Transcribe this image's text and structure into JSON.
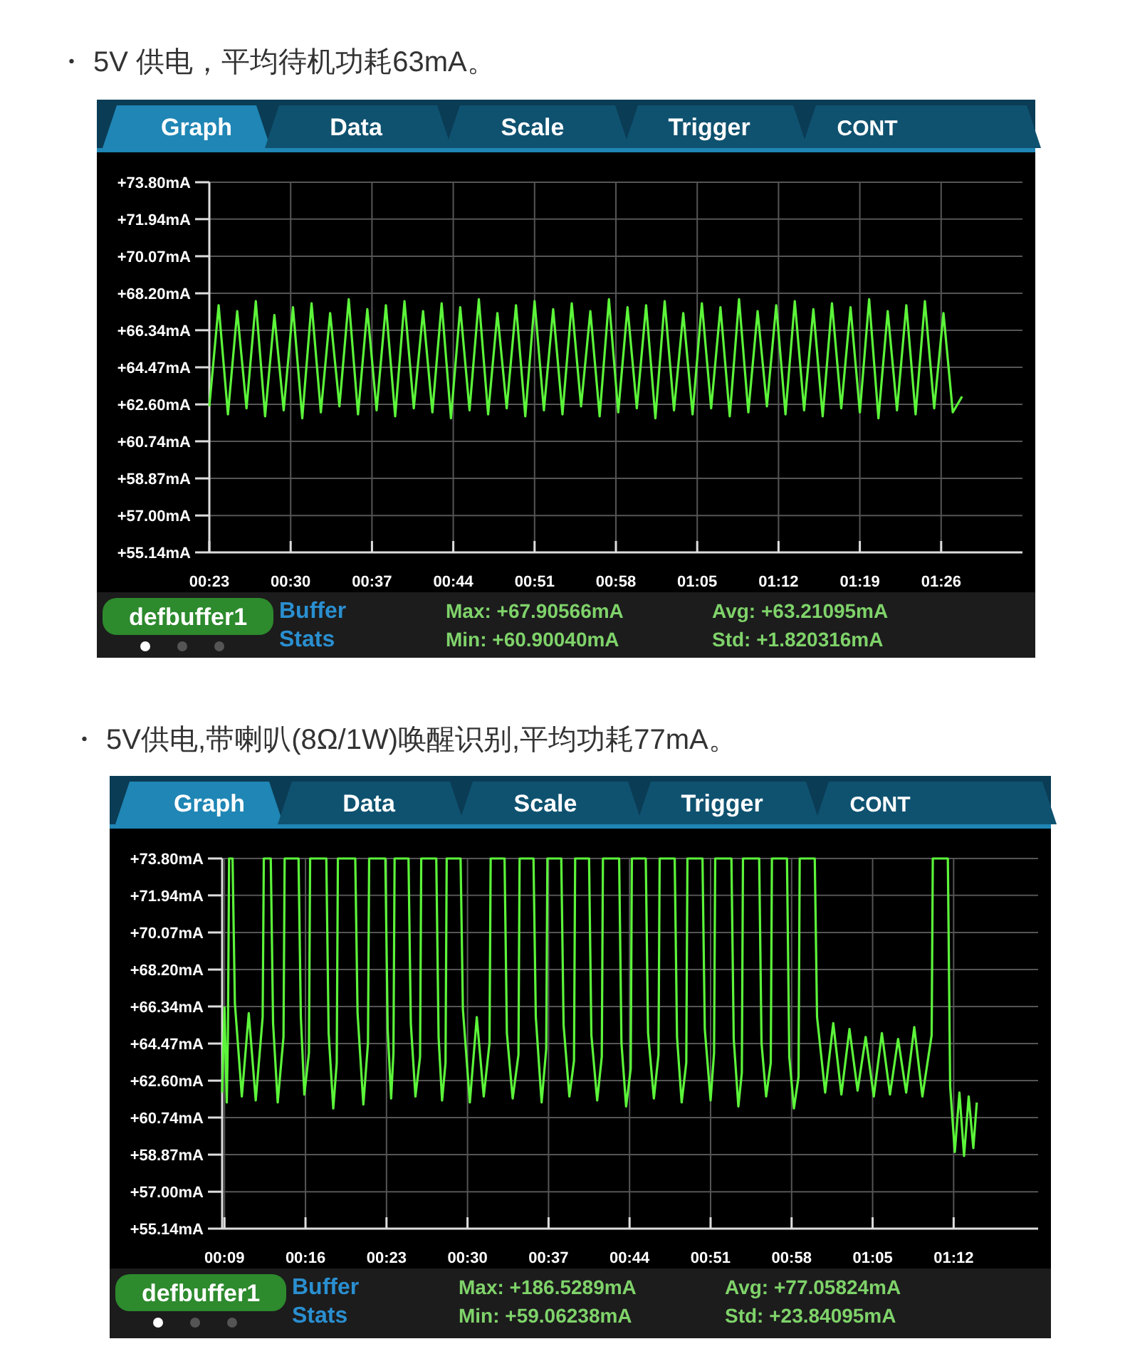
{
  "chart_data": [
    {
      "type": "line",
      "title": "・ 5V 供电，平均待机功耗63mA。",
      "annotations": [
        "Graph",
        "Data",
        "Scale",
        "Trigger",
        "CONT",
        "defbuffer1",
        "Buffer",
        "Stats",
        "Max: +67.90566mA",
        "Min: +60.90040mA",
        "Avg: +63.21095mA",
        "Std: +1.820316mA"
      ],
      "xlim": [
        23,
        93
      ],
      "xticks": [
        {
          "value": 23,
          "label": "00:23"
        },
        {
          "value": 30,
          "label": "00:30"
        },
        {
          "value": 37,
          "label": "00:37"
        },
        {
          "value": 44,
          "label": "00:44"
        },
        {
          "value": 51,
          "label": "00:51"
        },
        {
          "value": 58,
          "label": "00:58"
        },
        {
          "value": 65,
          "label": "01:05"
        },
        {
          "value": 72,
          "label": "01:12"
        },
        {
          "value": 79,
          "label": "01:19"
        },
        {
          "value": 86,
          "label": "01:26"
        }
      ],
      "ylim": [
        55.14,
        73.8
      ],
      "yticks": [
        {
          "value": 55.14,
          "label": "+55.14mA"
        },
        {
          "value": 57.0,
          "label": "+57.00mA"
        },
        {
          "value": 58.87,
          "label": "+58.87mA"
        },
        {
          "value": 60.74,
          "label": "+60.74mA"
        },
        {
          "value": 62.6,
          "label": "+62.60mA"
        },
        {
          "value": 64.47,
          "label": "+64.47mA"
        },
        {
          "value": 66.34,
          "label": "+66.34mA"
        },
        {
          "value": 68.2,
          "label": "+68.20mA"
        },
        {
          "value": 70.07,
          "label": "+70.07mA"
        },
        {
          "value": 71.94,
          "label": "+71.94mA"
        },
        {
          "value": 73.8,
          "label": "+73.80mA"
        }
      ],
      "grid": true,
      "series": [
        {
          "color": "#5cf53a",
          "x": [
            23.0,
            23.8,
            24.6,
            25.4,
            26.2,
            27.0,
            27.8,
            28.6,
            29.4,
            30.2,
            31.0,
            31.8,
            32.6,
            33.4,
            34.2,
            35.0,
            35.8,
            36.6,
            37.4,
            38.2,
            39.0,
            39.8,
            40.6,
            41.4,
            42.2,
            43.0,
            43.8,
            44.6,
            45.4,
            46.2,
            47.0,
            47.8,
            48.6,
            49.4,
            50.2,
            51.0,
            51.8,
            52.6,
            53.4,
            54.2,
            55.0,
            55.8,
            56.6,
            57.4,
            58.2,
            59.0,
            59.8,
            60.6,
            61.4,
            62.2,
            63.0,
            63.8,
            64.6,
            65.4,
            66.2,
            67.0,
            67.8,
            68.6,
            69.4,
            70.2,
            71.0,
            71.8,
            72.6,
            73.4,
            74.2,
            75.0,
            75.8,
            76.6,
            77.4,
            78.2,
            79.0,
            79.8,
            80.6,
            81.4,
            82.2,
            83.0,
            83.8,
            84.6,
            85.4,
            86.2,
            87.0,
            87.8
          ],
          "values": [
            62.5,
            67.6,
            62.1,
            67.3,
            62.4,
            67.8,
            62.0,
            67.1,
            62.3,
            67.5,
            61.9,
            67.7,
            62.2,
            67.2,
            62.5,
            67.9,
            62.1,
            67.4,
            62.3,
            67.6,
            62.0,
            67.8,
            62.4,
            67.3,
            62.2,
            67.7,
            61.9,
            67.5,
            62.3,
            67.9,
            62.1,
            67.2,
            62.4,
            67.6,
            62.0,
            67.8,
            62.3,
            67.4,
            62.1,
            67.7,
            62.5,
            67.3,
            62.0,
            67.9,
            62.2,
            67.5,
            62.4,
            67.6,
            61.9,
            67.8,
            62.3,
            67.2,
            62.1,
            67.7,
            62.4,
            67.5,
            62.0,
            67.9,
            62.2,
            67.3,
            62.5,
            67.6,
            62.1,
            67.8,
            62.3,
            67.4,
            62.0,
            67.7,
            62.4,
            67.5,
            62.2,
            67.9,
            61.9,
            67.3,
            62.3,
            67.6,
            62.1,
            67.8,
            62.4,
            67.2,
            62.2,
            63.0
          ]
        }
      ]
    },
    {
      "type": "line",
      "title": "・ 5V供电,带喇叭(8Ω/1W)唤醒识别,平均功耗77mA。",
      "annotations": [
        "Graph",
        "Data",
        "Scale",
        "Trigger",
        "CONT",
        "defbuffer1",
        "Buffer",
        "Stats",
        "Max: +186.5289mA",
        "Min: +59.06238mA",
        "Avg: +77.05824mA",
        "Std: +23.84095mA"
      ],
      "xlim": [
        8.8,
        79.3
      ],
      "xticks": [
        {
          "value": 9,
          "label": "00:09"
        },
        {
          "value": 16,
          "label": "00:16"
        },
        {
          "value": 23,
          "label": "00:23"
        },
        {
          "value": 30,
          "label": "00:30"
        },
        {
          "value": 37,
          "label": "00:37"
        },
        {
          "value": 44,
          "label": "00:44"
        },
        {
          "value": 51,
          "label": "00:51"
        },
        {
          "value": 58,
          "label": "00:58"
        },
        {
          "value": 65,
          "label": "01:05"
        },
        {
          "value": 72,
          "label": "01:12"
        }
      ],
      "ylim": [
        55.14,
        73.8
      ],
      "yticks": [
        {
          "value": 55.14,
          "label": "+55.14mA"
        },
        {
          "value": 57.0,
          "label": "+57.00mA"
        },
        {
          "value": 58.87,
          "label": "+58.87mA"
        },
        {
          "value": 60.74,
          "label": "+60.74mA"
        },
        {
          "value": 62.6,
          "label": "+62.60mA"
        },
        {
          "value": 64.47,
          "label": "+64.47mA"
        },
        {
          "value": 66.34,
          "label": "+66.34mA"
        },
        {
          "value": 68.2,
          "label": "+68.20mA"
        },
        {
          "value": 70.07,
          "label": "+70.07mA"
        },
        {
          "value": 71.94,
          "label": "+71.94mA"
        },
        {
          "value": 73.8,
          "label": "+73.80mA"
        }
      ],
      "grid": true,
      "series": [
        {
          "color": "#5cf53a",
          "x": [
            8.8,
            9.0,
            9.2,
            9.3,
            9.4,
            9.7,
            9.9,
            10.5,
            11.1,
            11.7,
            12.3,
            12.4,
            13.0,
            13.2,
            13.6,
            14.1,
            14.2,
            15.4,
            15.6,
            15.9,
            16.3,
            16.4,
            17.8,
            18.0,
            18.4,
            18.7,
            18.8,
            20.3,
            20.5,
            21.0,
            21.4,
            21.5,
            22.9,
            23.1,
            23.4,
            23.6,
            23.7,
            24.9,
            25.1,
            25.5,
            25.9,
            26.0,
            27.3,
            27.5,
            27.8,
            28.1,
            28.2,
            29.4,
            29.6,
            30.2,
            30.8,
            31.4,
            31.9,
            32.0,
            33.2,
            33.4,
            33.9,
            34.4,
            34.5,
            35.7,
            35.9,
            36.4,
            36.8,
            36.9,
            38.1,
            38.3,
            38.8,
            39.2,
            39.3,
            40.5,
            40.7,
            41.2,
            41.6,
            41.7,
            43.1,
            43.3,
            43.7,
            44.1,
            44.2,
            45.4,
            45.6,
            46.1,
            46.5,
            46.6,
            47.9,
            48.1,
            48.5,
            48.9,
            49.0,
            50.3,
            50.5,
            51.0,
            51.3,
            51.4,
            52.8,
            53.0,
            53.4,
            53.7,
            53.8,
            55.2,
            55.4,
            55.8,
            56.2,
            56.3,
            57.6,
            57.8,
            58.2,
            58.6,
            58.7,
            60.0,
            60.2,
            60.9,
            61.6,
            62.3,
            63.0,
            63.7,
            64.4,
            65.1,
            65.8,
            66.5,
            67.2,
            67.9,
            68.6,
            69.3,
            70.1,
            70.2,
            71.5,
            71.7,
            72.1,
            72.5,
            72.9,
            73.3,
            73.7,
            74.0
          ],
          "values": [
            62.0,
            66.3,
            61.5,
            65.0,
            73.8,
            73.8,
            66.5,
            61.8,
            66.0,
            61.6,
            65.8,
            73.8,
            73.8,
            65.5,
            61.5,
            64.8,
            73.8,
            73.8,
            65.8,
            61.9,
            64.0,
            73.8,
            73.8,
            65.0,
            61.2,
            63.5,
            73.8,
            73.8,
            66.0,
            61.4,
            64.5,
            73.8,
            73.8,
            65.2,
            61.7,
            64.0,
            73.8,
            73.8,
            65.5,
            61.8,
            63.8,
            73.8,
            73.8,
            64.8,
            61.6,
            63.5,
            73.8,
            73.8,
            66.2,
            61.5,
            65.8,
            61.8,
            64.5,
            73.8,
            73.8,
            65.0,
            61.7,
            63.9,
            73.8,
            73.8,
            65.8,
            61.5,
            64.2,
            73.8,
            73.8,
            65.4,
            61.8,
            63.6,
            73.8,
            73.8,
            64.9,
            61.6,
            63.8,
            73.8,
            73.8,
            64.5,
            61.3,
            63.2,
            73.8,
            73.8,
            65.0,
            61.7,
            63.9,
            73.8,
            73.8,
            64.8,
            61.5,
            63.5,
            73.8,
            73.8,
            65.2,
            61.6,
            64.0,
            73.8,
            73.8,
            64.7,
            61.3,
            63.0,
            73.8,
            73.8,
            64.5,
            61.8,
            63.5,
            73.8,
            73.8,
            63.8,
            61.2,
            62.8,
            73.8,
            73.8,
            65.8,
            62.0,
            65.5,
            61.9,
            65.2,
            62.1,
            64.8,
            61.8,
            65.0,
            61.9,
            64.7,
            62.0,
            65.3,
            61.8,
            64.9,
            73.8,
            73.8,
            62.3,
            59.0,
            62.0,
            58.8,
            61.8,
            59.2,
            61.5
          ]
        }
      ]
    }
  ]
}
